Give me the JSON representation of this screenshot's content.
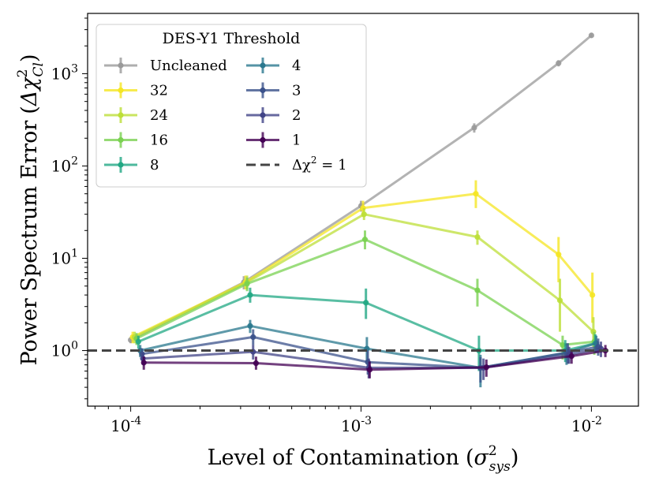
{
  "chart_data": {
    "type": "line",
    "xscale": "log",
    "yscale": "log",
    "xlim": [
      6.5e-05,
      0.016
    ],
    "ylim": [
      0.25,
      4500
    ],
    "xlabel": "Level of Contamination",
    "xlabel_math": "σ",
    "xlabel_sup": "2",
    "xlabel_sub": "sys",
    "ylabel": "Power Spectrum Error",
    "ylabel_math": "Δχ",
    "ylabel_sup": "2",
    "ylabel_sub": "Cl",
    "x_ticks": [
      {
        "value": 0.0001,
        "base": "10",
        "exp": "-4"
      },
      {
        "value": 0.001,
        "base": "10",
        "exp": "-3"
      },
      {
        "value": 0.01,
        "base": "10",
        "exp": "-2"
      }
    ],
    "y_ticks": [
      {
        "value": 1,
        "base": "10",
        "exp": "0"
      },
      {
        "value": 10,
        "base": "10",
        "exp": "1"
      },
      {
        "value": 100,
        "base": "10",
        "exp": "2"
      },
      {
        "value": 1000,
        "base": "10",
        "exp": "3"
      }
    ],
    "reference_line": {
      "y": 1,
      "label": "Δχ² = 1",
      "color": "#444444"
    },
    "legend": {
      "title": "DES-Y1 Threshold",
      "position": "top-left",
      "columns": 2
    },
    "series": [
      {
        "name": "Uncleaned",
        "color": "#9a9a9a",
        "x": [
          0.0001,
          0.00031,
          0.001,
          0.0031,
          0.0072,
          0.01
        ],
        "y": [
          1.3,
          5.5,
          37,
          260,
          1300,
          2600
        ],
        "lo": [
          1.2,
          4.6,
          32,
          230,
          1200,
          2450
        ],
        "hi": [
          1.4,
          6.4,
          42,
          290,
          1400,
          2750
        ]
      },
      {
        "name": "32",
        "color": "#f5e623",
        "x": [
          0.000102,
          0.000315,
          0.00102,
          0.00315,
          0.0072,
          0.0101
        ],
        "y": [
          1.4,
          5.5,
          35,
          50,
          11,
          4
        ],
        "lo": [
          1.2,
          4.6,
          28,
          35,
          5.5,
          2
        ],
        "hi": [
          1.6,
          6.5,
          42,
          70,
          17,
          7
        ]
      },
      {
        "name": "24",
        "color": "#bddf38",
        "x": [
          0.000104,
          0.00032,
          0.00103,
          0.0032,
          0.0073,
          0.0102
        ],
        "y": [
          1.4,
          5.5,
          30,
          17,
          3.5,
          1.6
        ],
        "lo": [
          1.2,
          4.6,
          26,
          14,
          1.6,
          1.1
        ],
        "hi": [
          1.6,
          6.5,
          35,
          20,
          6,
          2.3
        ]
      },
      {
        "name": "16",
        "color": "#7ad151",
        "x": [
          0.000106,
          0.00032,
          0.00104,
          0.0032,
          0.0075,
          0.0103
        ],
        "y": [
          1.35,
          5.3,
          16,
          4.5,
          1.15,
          1.25
        ],
        "lo": [
          1.15,
          4.4,
          12.5,
          3,
          0.8,
          0.9
        ],
        "hi": [
          1.55,
          6.2,
          20,
          6,
          1.45,
          1.6
        ]
      },
      {
        "name": "8",
        "color": "#22a884",
        "x": [
          0.000108,
          0.00033,
          0.00105,
          0.00325,
          0.0077,
          0.0104
        ],
        "y": [
          1.25,
          4,
          3.3,
          1,
          1.0,
          1.2
        ],
        "lo": [
          1.05,
          3.3,
          2.2,
          0.6,
          0.75,
          0.95
        ],
        "hi": [
          1.45,
          4.8,
          4.7,
          1.45,
          1.3,
          1.5
        ]
      },
      {
        "name": "4",
        "color": "#2a788e",
        "x": [
          0.00011,
          0.00033,
          0.00106,
          0.0033,
          0.0078,
          0.0105
        ],
        "y": [
          1.0,
          1.85,
          1.05,
          0.65,
          0.95,
          1.2
        ],
        "lo": [
          0.85,
          1.55,
          0.75,
          0.4,
          0.7,
          0.95
        ],
        "hi": [
          1.15,
          2.15,
          1.4,
          0.9,
          1.2,
          1.45
        ]
      },
      {
        "name": "3",
        "color": "#3b528b",
        "x": [
          0.000112,
          0.00034,
          0.00107,
          0.0033,
          0.0079,
          0.0107
        ],
        "y": [
          0.92,
          1.4,
          0.75,
          0.65,
          0.95,
          1.1
        ],
        "lo": [
          0.78,
          1.15,
          0.55,
          0.45,
          0.72,
          0.88
        ],
        "hi": [
          1.06,
          1.7,
          1.0,
          0.85,
          1.2,
          1.35
        ]
      },
      {
        "name": "2",
        "color": "#414487",
        "x": [
          0.000113,
          0.00034,
          0.00108,
          0.0034,
          0.008,
          0.011
        ],
        "y": [
          0.82,
          0.97,
          0.65,
          0.65,
          0.9,
          1.05
        ],
        "lo": [
          0.7,
          0.8,
          0.5,
          0.48,
          0.72,
          0.85
        ],
        "hi": [
          0.95,
          1.15,
          0.82,
          0.82,
          1.1,
          1.25
        ]
      },
      {
        "name": "1",
        "color": "#440154",
        "x": [
          0.000114,
          0.00035,
          0.00109,
          0.0035,
          0.0082,
          0.0115
        ],
        "y": [
          0.74,
          0.73,
          0.62,
          0.66,
          0.87,
          1.0
        ],
        "lo": [
          0.62,
          0.62,
          0.5,
          0.52,
          0.72,
          0.85
        ],
        "hi": [
          0.86,
          0.86,
          0.76,
          0.8,
          1.03,
          1.15
        ]
      }
    ]
  }
}
